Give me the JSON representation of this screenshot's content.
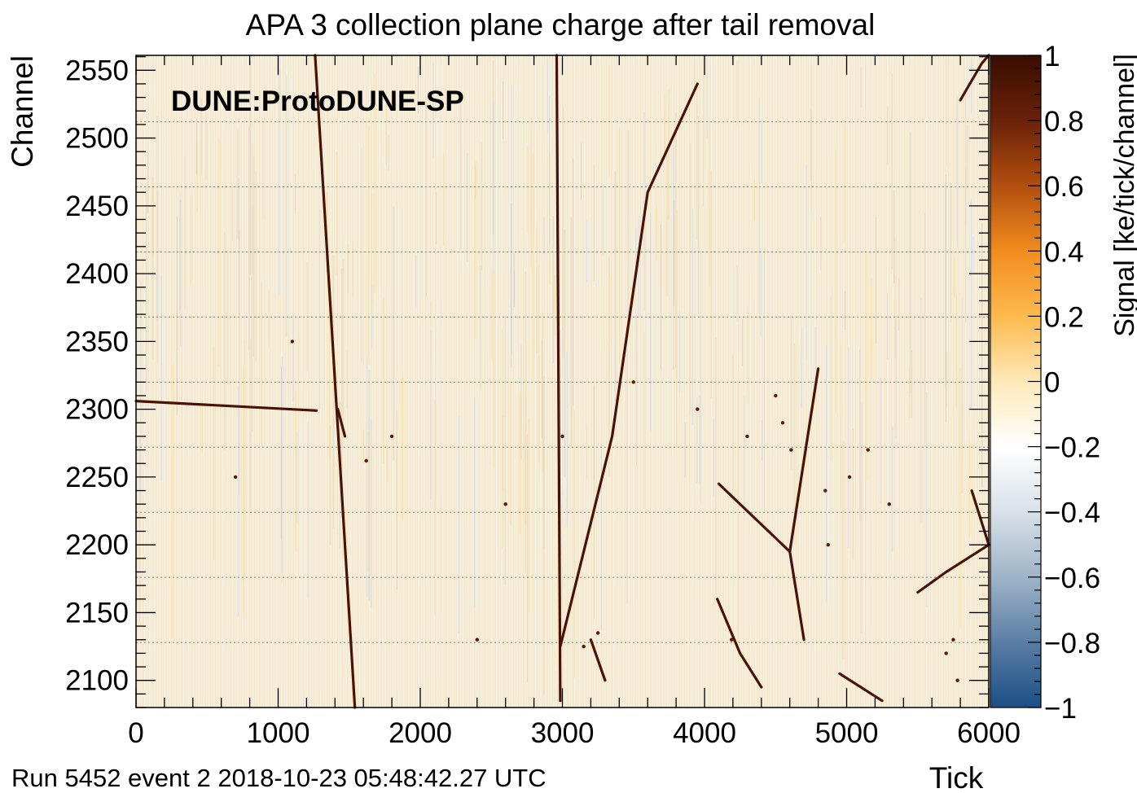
{
  "chart_data": {
    "type": "heatmap",
    "title": "APA 3 collection plane charge after tail removal",
    "xlabel": "Tick",
    "ylabel": "Channel",
    "xlim": [
      0,
      6000
    ],
    "ylim": [
      2080,
      2561
    ],
    "x_ticks": [
      0,
      1000,
      2000,
      3000,
      4000,
      5000,
      6000
    ],
    "x_tick_labels": [
      "0",
      "1000",
      "2000",
      "3000",
      "4000",
      "5000",
      "6000"
    ],
    "y_ticks": [
      2100,
      2150,
      2200,
      2250,
      2300,
      2350,
      2400,
      2450,
      2500,
      2550
    ],
    "y_tick_labels": [
      "2100",
      "2150",
      "2200",
      "2250",
      "2300",
      "2350",
      "2400",
      "2450",
      "2500",
      "2550"
    ],
    "colorbar": {
      "label": "Signal [ke/tick/channel]",
      "range": [
        -1,
        1
      ],
      "ticks": [
        1,
        0.8,
        0.6,
        0.4,
        0.2,
        0,
        -0.2,
        -0.4,
        -0.6,
        -0.8,
        -1
      ],
      "tick_labels": [
        "1",
        "0.8",
        "0.6",
        "0.4",
        "0.2",
        "0",
        "−0.2",
        "−0.4",
        "−0.6",
        "−0.8",
        "−1"
      ],
      "colors": [
        "#1b4f86",
        "#5a7ea5",
        "#9fb4c8",
        "#d9e1e8",
        "#ffffff",
        "#fde9b8",
        "#fdba4e",
        "#f28c1f",
        "#b24e0f",
        "#6a2208",
        "#3a0d02"
      ]
    },
    "annotation": "DUNE:ProtoDUNE-SP",
    "footer": "Run 5452 event 2 2018-10-23 05:48:42.27 UTC",
    "dashed_channels": [
      2128,
      2176,
      2224,
      2272,
      2320,
      2368,
      2416,
      2464,
      2512
    ],
    "tracks": [
      {
        "points": [
          [
            1260,
            2561
          ],
          [
            1540,
            2080
          ]
        ]
      },
      {
        "points": [
          [
            2960,
            2561
          ],
          [
            2985,
            2085
          ]
        ]
      },
      {
        "points": [
          [
            2985,
            2125
          ],
          [
            3350,
            2280
          ],
          [
            3600,
            2460
          ],
          [
            3950,
            2540
          ]
        ]
      },
      {
        "points": [
          [
            0,
            2306
          ],
          [
            1270,
            2299
          ]
        ]
      },
      {
        "points": [
          [
            4100,
            2245
          ],
          [
            4600,
            2195
          ]
        ]
      },
      {
        "points": [
          [
            4600,
            2195
          ],
          [
            4800,
            2330
          ]
        ]
      },
      {
        "points": [
          [
            4600,
            2195
          ],
          [
            4700,
            2130
          ]
        ]
      },
      {
        "points": [
          [
            4090,
            2160
          ],
          [
            4250,
            2120
          ],
          [
            4400,
            2095
          ]
        ]
      },
      {
        "points": [
          [
            4950,
            2105
          ],
          [
            5100,
            2095
          ],
          [
            5250,
            2085
          ]
        ]
      },
      {
        "points": [
          [
            5500,
            2165
          ],
          [
            5700,
            2180
          ],
          [
            6000,
            2200
          ]
        ]
      },
      {
        "points": [
          [
            5800,
            2528
          ],
          [
            5950,
            2555
          ],
          [
            6000,
            2561
          ]
        ]
      },
      {
        "points": [
          [
            3200,
            2130
          ],
          [
            3300,
            2100
          ]
        ]
      },
      {
        "points": [
          [
            5880,
            2240
          ],
          [
            6000,
            2200
          ]
        ]
      },
      {
        "points": [
          [
            1420,
            2300
          ],
          [
            1470,
            2280
          ]
        ]
      }
    ],
    "blobs": [
      [
        1620,
        2262
      ],
      [
        1800,
        2280
      ],
      [
        4550,
        2290
      ],
      [
        4610,
        2270
      ],
      [
        4850,
        2240
      ],
      [
        5020,
        2250
      ],
      [
        5150,
        2270
      ],
      [
        5700,
        2120
      ],
      [
        5750,
        2130
      ],
      [
        3150,
        2125
      ],
      [
        3250,
        2135
      ],
      [
        4190,
        2130
      ],
      [
        3000,
        2280
      ],
      [
        2600,
        2230
      ],
      [
        4300,
        2280
      ],
      [
        4870,
        2200
      ],
      [
        5780,
        2100
      ],
      [
        3950,
        2300
      ],
      [
        1100,
        2350
      ],
      [
        700,
        2250
      ],
      [
        2400,
        2130
      ],
      [
        3500,
        2320
      ],
      [
        4500,
        2310
      ],
      [
        5300,
        2230
      ]
    ]
  }
}
